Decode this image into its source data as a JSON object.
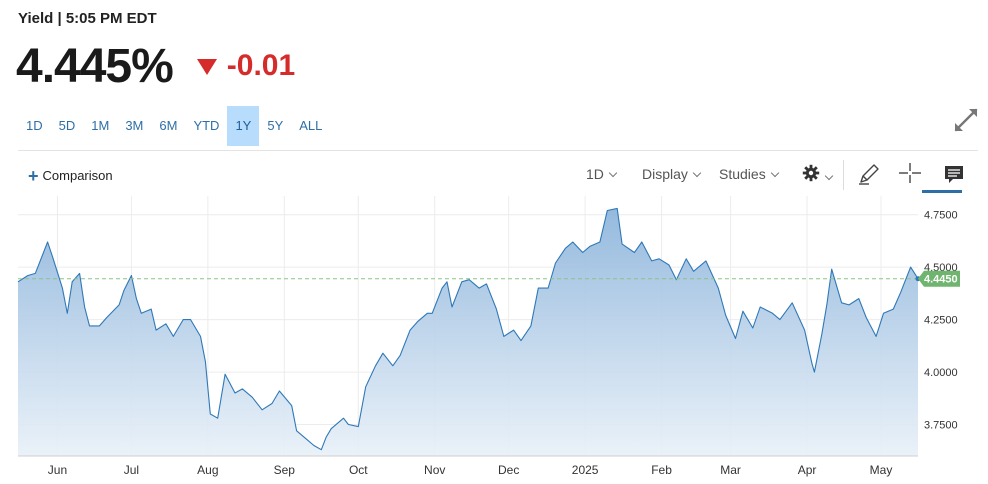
{
  "header": {
    "title": "Yield | 5:05 PM EDT",
    "price": "4.445%",
    "change": "-0.01"
  },
  "ranges": [
    {
      "label": "1D",
      "active": false
    },
    {
      "label": "5D",
      "active": false
    },
    {
      "label": "1M",
      "active": false
    },
    {
      "label": "3M",
      "active": false
    },
    {
      "label": "6M",
      "active": false
    },
    {
      "label": "YTD",
      "active": false
    },
    {
      "label": "1Y",
      "active": true
    },
    {
      "label": "5Y",
      "active": false
    },
    {
      "label": "ALL",
      "active": false
    }
  ],
  "toolbar": {
    "comparison": "Comparison",
    "interval": "1D",
    "display": "Display",
    "studies": "Studies"
  },
  "colors": {
    "line": "#2f78b7",
    "down": "#d62b2b",
    "active_range": "#b8dcfb",
    "current_badge": "#6fb56f"
  },
  "icons": [
    "expand-icon",
    "plus-icon",
    "gear-icon",
    "pencil-icon",
    "crosshair-icon",
    "comment-icon"
  ],
  "chart_data": {
    "type": "area",
    "title": "",
    "xlabel": "",
    "ylabel": "",
    "ylim": [
      3.6,
      4.82
    ],
    "yticks": [
      "4.7500",
      "4.5000",
      "4.2500",
      "4.0000",
      "3.7500"
    ],
    "ytick_values": [
      4.75,
      4.5,
      4.25,
      4.0,
      3.75
    ],
    "xticks": [
      "Jun",
      "Jul",
      "Aug",
      "Sep",
      "Oct",
      "Nov",
      "Dec",
      "2025",
      "Feb",
      "Mar",
      "Apr",
      "May"
    ],
    "xtick_dates": [
      "2024-06-01",
      "2024-07-01",
      "2024-08-01",
      "2024-09-01",
      "2024-10-01",
      "2024-11-01",
      "2024-12-01",
      "2025-01-01",
      "2025-02-01",
      "2025-03-01",
      "2025-04-01",
      "2025-05-01"
    ],
    "x_range": [
      "2024-05-16",
      "2025-05-16"
    ],
    "current": {
      "value": 4.445,
      "label": "4.4450"
    },
    "grid": true,
    "series": [
      {
        "x": [
          "2024-05-16",
          "2024-05-20",
          "2024-05-23",
          "2024-05-28",
          "2024-05-30",
          "2024-06-03",
          "2024-06-05",
          "2024-06-07",
          "2024-06-10",
          "2024-06-12",
          "2024-06-14",
          "2024-06-18",
          "2024-06-21",
          "2024-06-26",
          "2024-06-28",
          "2024-07-01",
          "2024-07-03",
          "2024-07-05",
          "2024-07-09",
          "2024-07-11",
          "2024-07-15",
          "2024-07-18",
          "2024-07-22",
          "2024-07-25",
          "2024-07-29",
          "2024-07-31",
          "2024-08-02",
          "2024-08-05",
          "2024-08-08",
          "2024-08-12",
          "2024-08-15",
          "2024-08-19",
          "2024-08-23",
          "2024-08-27",
          "2024-08-30",
          "2024-09-04",
          "2024-09-06",
          "2024-09-10",
          "2024-09-13",
          "2024-09-16",
          "2024-09-18",
          "2024-09-20",
          "2024-09-25",
          "2024-09-27",
          "2024-10-01",
          "2024-10-04",
          "2024-10-08",
          "2024-10-11",
          "2024-10-15",
          "2024-10-18",
          "2024-10-22",
          "2024-10-25",
          "2024-10-29",
          "2024-10-31",
          "2024-11-04",
          "2024-11-06",
          "2024-11-08",
          "2024-11-12",
          "2024-11-15",
          "2024-11-19",
          "2024-11-22",
          "2024-11-26",
          "2024-11-29",
          "2024-12-03",
          "2024-12-06",
          "2024-12-10",
          "2024-12-13",
          "2024-12-17",
          "2024-12-20",
          "2024-12-24",
          "2024-12-27",
          "2024-12-31",
          "2025-01-03",
          "2025-01-07",
          "2025-01-10",
          "2025-01-14",
          "2025-01-16",
          "2025-01-21",
          "2025-01-24",
          "2025-01-28",
          "2025-01-31",
          "2025-02-04",
          "2025-02-07",
          "2025-02-11",
          "2025-02-14",
          "2025-02-19",
          "2025-02-24",
          "2025-02-27",
          "2025-03-03",
          "2025-03-06",
          "2025-03-10",
          "2025-03-13",
          "2025-03-18",
          "2025-03-21",
          "2025-03-26",
          "2025-03-31",
          "2025-04-03",
          "2025-04-04",
          "2025-04-07",
          "2025-04-09",
          "2025-04-11",
          "2025-04-15",
          "2025-04-18",
          "2025-04-22",
          "2025-04-25",
          "2025-04-29",
          "2025-05-02",
          "2025-05-06",
          "2025-05-09",
          "2025-05-13",
          "2025-05-16"
        ],
        "values": [
          4.43,
          4.46,
          4.47,
          4.62,
          4.55,
          4.4,
          4.28,
          4.43,
          4.47,
          4.31,
          4.22,
          4.22,
          4.26,
          4.32,
          4.39,
          4.46,
          4.35,
          4.28,
          4.3,
          4.2,
          4.23,
          4.17,
          4.25,
          4.25,
          4.17,
          4.05,
          3.8,
          3.78,
          3.99,
          3.9,
          3.92,
          3.88,
          3.82,
          3.85,
          3.91,
          3.84,
          3.72,
          3.68,
          3.65,
          3.63,
          3.69,
          3.73,
          3.78,
          3.75,
          3.74,
          3.93,
          4.03,
          4.09,
          4.03,
          4.08,
          4.2,
          4.24,
          4.28,
          4.28,
          4.4,
          4.43,
          4.31,
          4.43,
          4.44,
          4.4,
          4.42,
          4.3,
          4.17,
          4.2,
          4.15,
          4.22,
          4.4,
          4.4,
          4.52,
          4.59,
          4.62,
          4.57,
          4.6,
          4.62,
          4.77,
          4.78,
          4.61,
          4.57,
          4.62,
          4.53,
          4.54,
          4.51,
          4.44,
          4.54,
          4.48,
          4.53,
          4.4,
          4.27,
          4.16,
          4.29,
          4.21,
          4.31,
          4.28,
          4.25,
          4.33,
          4.2,
          4.04,
          4.0,
          4.18,
          4.32,
          4.49,
          4.33,
          4.32,
          4.35,
          4.26,
          4.17,
          4.28,
          4.3,
          4.38,
          4.5,
          4.445
        ]
      }
    ]
  }
}
